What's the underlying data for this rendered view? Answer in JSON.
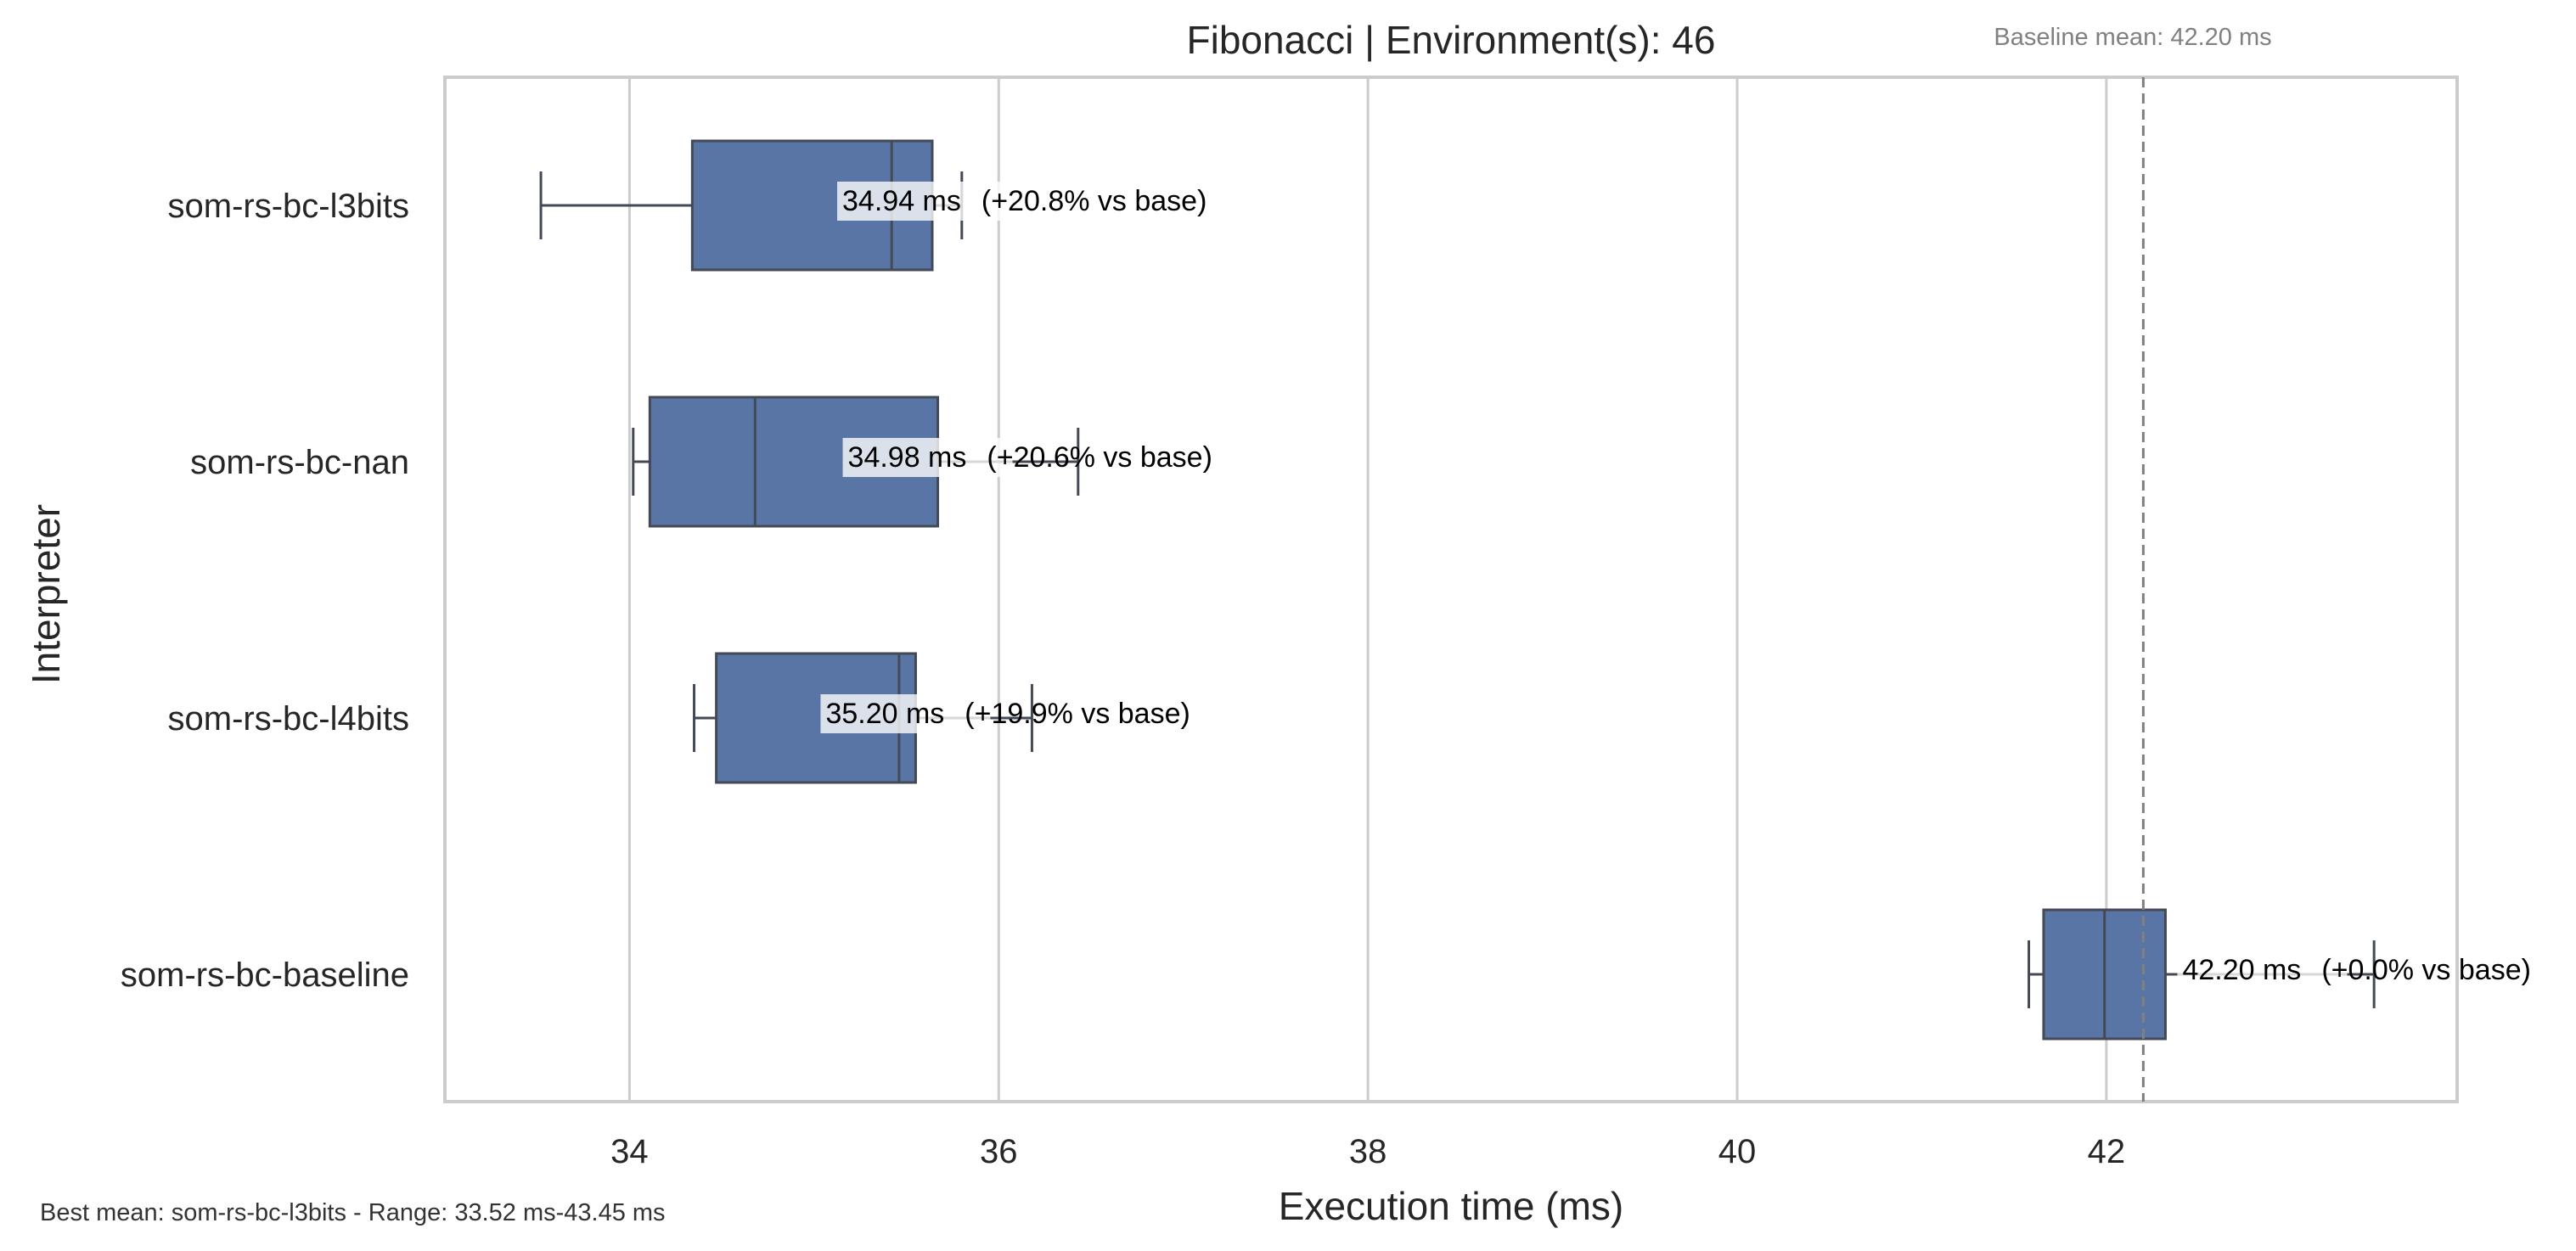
{
  "chart_data": {
    "type": "box",
    "orientation": "horizontal",
    "title": "Fibonacci | Environment(s): 46",
    "xlabel": "Execution time (ms)",
    "ylabel": "Interpreter",
    "xlim": [
      33.0,
      43.9
    ],
    "xticks": [
      34,
      36,
      38,
      40,
      42
    ],
    "grid": "vertical",
    "box_color": "#5975a6",
    "baseline": {
      "value": 42.2,
      "label": "Baseline mean: 42.20 ms"
    },
    "footer": "Best mean: som-rs-bc-l3bits - Range: 33.52 ms-43.45 ms",
    "categories": [
      "som-rs-bc-l3bits",
      "som-rs-bc-nan",
      "som-rs-bc-l4bits",
      "som-rs-bc-baseline"
    ],
    "boxes": [
      {
        "name": "som-rs-bc-l3bits",
        "whisker_low": 33.52,
        "q1": 34.34,
        "median": 35.42,
        "q3": 35.64,
        "whisker_high": 35.8,
        "mean_label": "34.94 ms",
        "delta_label": "(+20.8% vs base)"
      },
      {
        "name": "som-rs-bc-nan",
        "whisker_low": 34.02,
        "q1": 34.11,
        "median": 34.68,
        "q3": 35.67,
        "whisker_high": 36.43,
        "mean_label": "34.98 ms",
        "delta_label": "(+20.6% vs base)"
      },
      {
        "name": "som-rs-bc-l4bits",
        "whisker_low": 34.35,
        "q1": 34.47,
        "median": 35.46,
        "q3": 35.55,
        "whisker_high": 36.18,
        "mean_label": "35.20 ms",
        "delta_label": "(+19.9% vs base)"
      },
      {
        "name": "som-rs-bc-baseline",
        "whisker_low": 41.58,
        "q1": 41.66,
        "median": 41.99,
        "q3": 42.32,
        "whisker_high": 43.45,
        "mean_label": "42.20 ms",
        "delta_label": "(+0.0% vs base)"
      }
    ]
  }
}
